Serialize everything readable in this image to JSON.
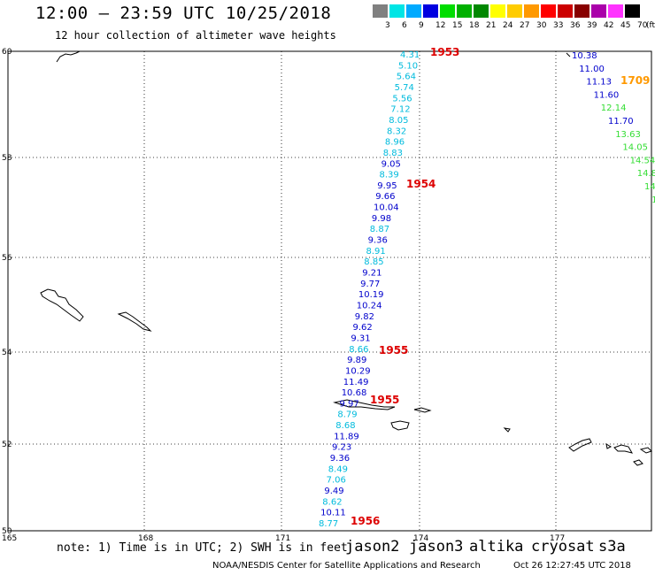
{
  "header": {
    "title": "12:00 – 23:59 UTC 10/25/2018",
    "subtitle": "12 hour collection of altimeter wave heights"
  },
  "legend": {
    "unit": "(ft)",
    "items": [
      {
        "label": "3",
        "color": "#808080"
      },
      {
        "label": "6",
        "color": "#00e5e5"
      },
      {
        "label": "9",
        "color": "#00aaff"
      },
      {
        "label": "12",
        "color": "#0000e0"
      },
      {
        "label": "15",
        "color": "#00dd00"
      },
      {
        "label": "18",
        "color": "#00b000"
      },
      {
        "label": "21",
        "color": "#008800"
      },
      {
        "label": "24",
        "color": "#ffff00"
      },
      {
        "label": "27",
        "color": "#ffcc00"
      },
      {
        "label": "30",
        "color": "#ff9900"
      },
      {
        "label": "33",
        "color": "#ff0000"
      },
      {
        "label": "36",
        "color": "#cc0000"
      },
      {
        "label": "39",
        "color": "#880000"
      },
      {
        "label": "42",
        "color": "#aa00aa"
      },
      {
        "label": "45",
        "color": "#ff33ff"
      },
      {
        "label": "70",
        "color": "#000000"
      }
    ]
  },
  "axes": {
    "lat_labels": [
      "60",
      "58",
      "56",
      "54",
      "52",
      "50"
    ],
    "lon_labels": [
      "165",
      "168",
      "171",
      "174",
      "177"
    ]
  },
  "track1": {
    "color_cyan": "#00bbdd",
    "color_blue": "#0000cc",
    "values": [
      {
        "v": "4.31",
        "c": "cyan"
      },
      {
        "v": "5.10",
        "c": "cyan"
      },
      {
        "v": "5.64",
        "c": "cyan"
      },
      {
        "v": "5.74",
        "c": "cyan"
      },
      {
        "v": "5.56",
        "c": "cyan"
      },
      {
        "v": "7.12",
        "c": "cyan"
      },
      {
        "v": "8.05",
        "c": "cyan"
      },
      {
        "v": "8.32",
        "c": "cyan"
      },
      {
        "v": "8.96",
        "c": "cyan"
      },
      {
        "v": "8.83",
        "c": "cyan"
      },
      {
        "v": "9.05",
        "c": "blue"
      },
      {
        "v": "8.39",
        "c": "cyan"
      },
      {
        "v": "9.95",
        "c": "blue"
      },
      {
        "v": "9.66",
        "c": "blue"
      },
      {
        "v": "10.04",
        "c": "blue"
      },
      {
        "v": "9.98",
        "c": "blue"
      },
      {
        "v": "8.87",
        "c": "cyan"
      },
      {
        "v": "9.36",
        "c": "blue"
      },
      {
        "v": "8.91",
        "c": "cyan"
      },
      {
        "v": "8.85",
        "c": "cyan"
      },
      {
        "v": "9.21",
        "c": "blue"
      },
      {
        "v": "9.77",
        "c": "blue"
      },
      {
        "v": "10.19",
        "c": "blue"
      },
      {
        "v": "10.24",
        "c": "blue"
      },
      {
        "v": "9.82",
        "c": "blue"
      },
      {
        "v": "9.62",
        "c": "blue"
      },
      {
        "v": "9.31",
        "c": "blue"
      },
      {
        "v": "8.66",
        "c": "cyan"
      },
      {
        "v": "9.89",
        "c": "blue"
      },
      {
        "v": "10.29",
        "c": "blue"
      },
      {
        "v": "11.49",
        "c": "blue"
      },
      {
        "v": "10.68",
        "c": "blue"
      },
      {
        "v": "9.97",
        "c": "blue"
      },
      {
        "v": "8.79",
        "c": "cyan"
      },
      {
        "v": "8.68",
        "c": "cyan"
      },
      {
        "v": "11.89",
        "c": "blue"
      },
      {
        "v": "9.23",
        "c": "blue"
      },
      {
        "v": "9.36",
        "c": "blue"
      },
      {
        "v": "8.49",
        "c": "cyan"
      },
      {
        "v": "7.06",
        "c": "cyan"
      },
      {
        "v": "9.49",
        "c": "blue"
      },
      {
        "v": "8.62",
        "c": "cyan"
      },
      {
        "v": "10.11",
        "c": "blue"
      },
      {
        "v": "8.77",
        "c": "cyan"
      }
    ],
    "times": [
      "1953",
      "1954",
      "1955",
      "1955",
      "1956"
    ]
  },
  "track2": {
    "values": [
      {
        "v": "10.38",
        "c": "blue"
      },
      {
        "v": "11.00",
        "c": "blue"
      },
      {
        "v": "11.13",
        "c": "blue"
      },
      {
        "v": "11.60",
        "c": "blue"
      },
      {
        "v": "12.14",
        "c": "green"
      },
      {
        "v": "11.70",
        "c": "blue"
      },
      {
        "v": "13.63",
        "c": "green"
      },
      {
        "v": "14.05",
        "c": "green"
      },
      {
        "v": "14.54",
        "c": "green"
      },
      {
        "v": "14.8",
        "c": "green"
      },
      {
        "v": "14.",
        "c": "green"
      },
      {
        "v": "1",
        "c": "green"
      }
    ],
    "time": "1709",
    "color_green": "#33dd33"
  },
  "footer": {
    "note": "note: 1) Time is in UTC; 2) SWH is in feet",
    "sats": [
      {
        "name": "jason2",
        "color": "#0000ee"
      },
      {
        "name": "jason3",
        "color": "#00aa00"
      },
      {
        "name": "altika",
        "color": "#ff9900"
      },
      {
        "name": "cryosat",
        "color": "#ee0000"
      },
      {
        "name": "s3a",
        "color": "#ee0000"
      }
    ],
    "credit": "NOAA/NESDIS Center for Satellite Applications and Research",
    "timestamp": "Oct 26 12:27:45 UTC 2018"
  }
}
